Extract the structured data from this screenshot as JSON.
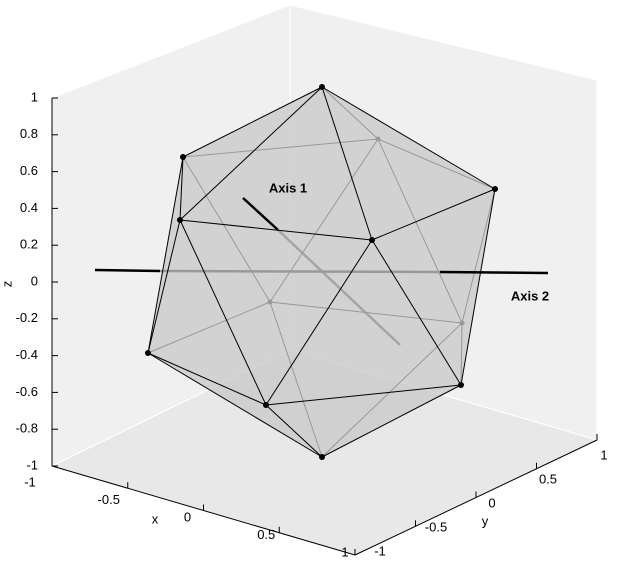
{
  "chart_data": {
    "type": "polyhedron3d",
    "xlabel": "x",
    "ylabel": "y",
    "zlabel": "z",
    "xlim": [
      -1,
      1
    ],
    "ylim": [
      -1,
      1
    ],
    "zlim": [
      -1,
      1
    ],
    "xticks": [
      -1,
      -0.5,
      0,
      0.5,
      1
    ],
    "yticks": [
      -1,
      -0.5,
      0,
      0.5,
      1
    ],
    "zticks": [
      -1,
      -0.8,
      -0.6,
      -0.4,
      -0.2,
      0,
      0.2,
      0.4,
      0.6,
      0.8,
      1
    ],
    "annotations": [
      "Axis 1",
      "Axis 2"
    ],
    "annotation_color": "#e00000"
  }
}
